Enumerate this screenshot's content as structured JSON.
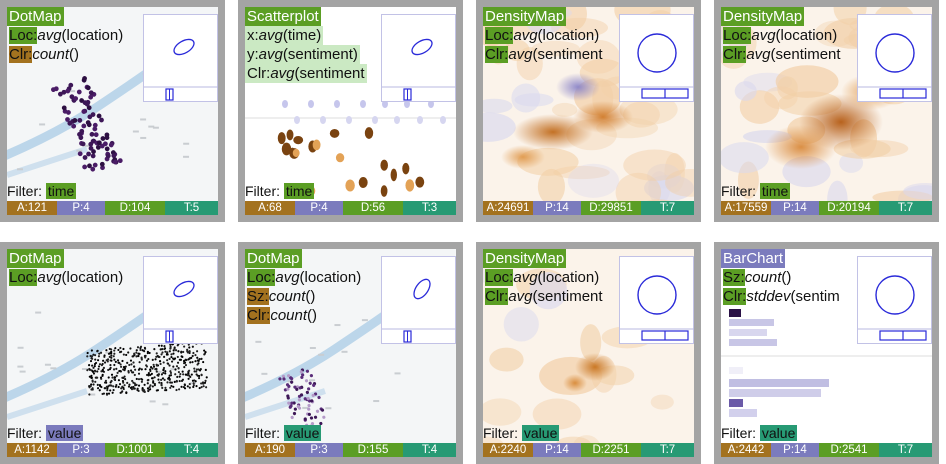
{
  "colors": {
    "green": "#5b9e24",
    "orange": "#a3721f",
    "purple": "#7b7bbd",
    "teal": "#279a74",
    "light_green": "#cbe9c3",
    "light_purple": "#c9c8ec",
    "frame": "#a4a4a4",
    "mini_stroke": "#2a2ad9"
  },
  "cards": [
    {
      "type": "DotMap",
      "type_color": "green",
      "viz": "dotmap-dark",
      "channels": [
        {
          "key": "Loc:",
          "key_color": "green",
          "func": "avg",
          "arg": "(location)"
        },
        {
          "key": "Clr:",
          "key_color": "orange",
          "func": "count",
          "arg": "()"
        }
      ],
      "filter_label": "Filter:",
      "filter_value": "time",
      "filter_color": "green",
      "stats": [
        {
          "text": "A:121",
          "color": "orange"
        },
        {
          "text": "P:4",
          "color": "purple"
        },
        {
          "text": "D:104",
          "color": "green"
        },
        {
          "text": "T:5",
          "color": "teal"
        }
      ],
      "thumb": "ellipse"
    },
    {
      "type": "Scatterplot",
      "type_color": "green",
      "viz": "scatter",
      "channels": [
        {
          "key": "x:",
          "key_color": "light_green",
          "func": "avg",
          "arg": "(time)"
        },
        {
          "key": "y:",
          "key_color": "light_green",
          "func": "avg",
          "arg": "(sentiment)"
        },
        {
          "key": "Clr:",
          "key_color": "light_green",
          "func": "avg",
          "arg": "(sentiment"
        }
      ],
      "filter_label": "Filter:",
      "filter_value": "time",
      "filter_color": "green",
      "stats": [
        {
          "text": "A:68",
          "color": "orange"
        },
        {
          "text": "P:4",
          "color": "purple"
        },
        {
          "text": "D:56",
          "color": "green"
        },
        {
          "text": "T:3",
          "color": "teal"
        }
      ],
      "thumb": "ellipse"
    },
    {
      "type": "DensityMap",
      "type_color": "green",
      "viz": "density-a",
      "channels": [
        {
          "key": "Loc:",
          "key_color": "green",
          "func": "avg",
          "arg": "(location)"
        },
        {
          "key": "Clr:",
          "key_color": "green",
          "func": "avg",
          "arg": "(sentiment"
        }
      ],
      "filter_label": "",
      "filter_value": "",
      "filter_color": "green",
      "stats": [
        {
          "text": "A:24691",
          "color": "orange"
        },
        {
          "text": "P:14",
          "color": "purple"
        },
        {
          "text": "D:29851",
          "color": "green"
        },
        {
          "text": "T:7",
          "color": "teal"
        }
      ],
      "thumb": "circle"
    },
    {
      "type": "DensityMap",
      "type_color": "green",
      "viz": "density-b",
      "channels": [
        {
          "key": "Loc:",
          "key_color": "green",
          "func": "avg",
          "arg": "(location)"
        },
        {
          "key": "Clr:",
          "key_color": "green",
          "func": "avg",
          "arg": "(sentiment"
        }
      ],
      "filter_label": "Filter:",
      "filter_value": "time",
      "filter_color": "green",
      "stats": [
        {
          "text": "A:17559",
          "color": "orange"
        },
        {
          "text": "P:14",
          "color": "purple"
        },
        {
          "text": "D:20194",
          "color": "green"
        },
        {
          "text": "T:7",
          "color": "teal"
        }
      ],
      "thumb": "circle"
    },
    {
      "type": "DotMap",
      "type_color": "green",
      "viz": "dotmap-black",
      "channels": [
        {
          "key": "Loc:",
          "key_color": "green",
          "func": "avg",
          "arg": "(location)"
        }
      ],
      "filter_label": "Filter:",
      "filter_value": "value",
      "filter_color": "purple",
      "stats": [
        {
          "text": "A:1142",
          "color": "orange"
        },
        {
          "text": "P:3",
          "color": "purple"
        },
        {
          "text": "D:1001",
          "color": "green"
        },
        {
          "text": "T:4",
          "color": "teal"
        }
      ],
      "thumb": "ellipse"
    },
    {
      "type": "DotMap",
      "type_color": "green",
      "viz": "dotmap-small",
      "channels": [
        {
          "key": "Loc:",
          "key_color": "green",
          "func": "avg",
          "arg": "(location)"
        },
        {
          "key": "Sz:",
          "key_color": "orange",
          "func": "count",
          "arg": "()"
        },
        {
          "key": "Clr:",
          "key_color": "orange",
          "func": "count",
          "arg": "()"
        }
      ],
      "filter_label": "Filter:",
      "filter_value": "value",
      "filter_color": "teal",
      "stats": [
        {
          "text": "A:190",
          "color": "orange"
        },
        {
          "text": "P:3",
          "color": "purple"
        },
        {
          "text": "D:155",
          "color": "green"
        },
        {
          "text": "T:4",
          "color": "teal"
        }
      ],
      "thumb": "ellipse-tilt"
    },
    {
      "type": "DensityMap",
      "type_color": "green",
      "viz": "density-c",
      "channels": [
        {
          "key": "Loc:",
          "key_color": "green",
          "func": "avg",
          "arg": "(location)"
        },
        {
          "key": "Clr:",
          "key_color": "green",
          "func": "avg",
          "arg": "(sentiment"
        }
      ],
      "filter_label": "Filter:",
      "filter_value": "value",
      "filter_color": "teal",
      "stats": [
        {
          "text": "A:2240",
          "color": "orange"
        },
        {
          "text": "P:14",
          "color": "purple"
        },
        {
          "text": "D:2251",
          "color": "green"
        },
        {
          "text": "T:7",
          "color": "teal"
        }
      ],
      "thumb": "circle"
    },
    {
      "type": "BarChart",
      "type_color": "purple",
      "viz": "barchart",
      "channels": [
        {
          "key": "Sz:",
          "key_color": "green",
          "func": "count",
          "arg": "()"
        },
        {
          "key": "Clr:",
          "key_color": "green",
          "func": "stddev",
          "arg": "(sentim"
        }
      ],
      "filter_label": "Filter:",
      "filter_value": "value",
      "filter_color": "teal",
      "stats": [
        {
          "text": "A:2442",
          "color": "orange"
        },
        {
          "text": "P:14",
          "color": "purple"
        },
        {
          "text": "D:2541",
          "color": "green"
        },
        {
          "text": "T:7",
          "color": "teal"
        }
      ],
      "thumb": "circle"
    }
  ]
}
